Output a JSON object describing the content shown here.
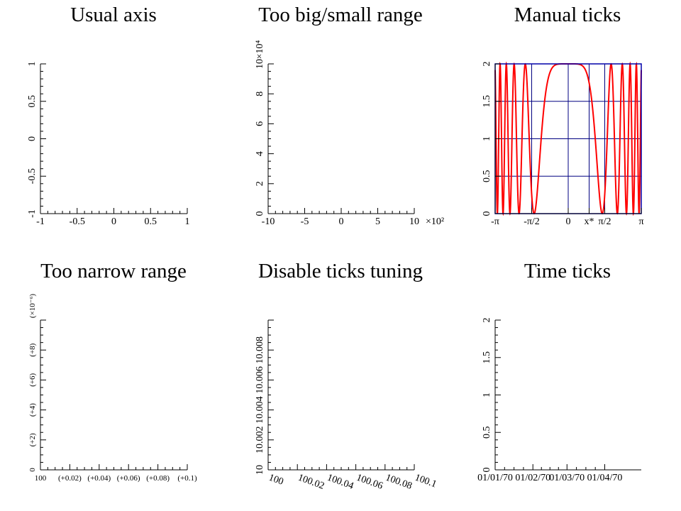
{
  "chart_data": [
    {
      "type": "line",
      "title": "Usual axis",
      "x": {
        "lim": [
          -1,
          1
        ],
        "ticks": [
          -1,
          -0.5,
          0,
          0.5,
          1
        ],
        "tick_labels": [
          "-1",
          "-0.5",
          "0",
          "0.5",
          "1"
        ]
      },
      "y": {
        "lim": [
          -1,
          1
        ],
        "ticks": [
          -1,
          -0.5,
          0,
          0.5,
          1
        ],
        "tick_labels": [
          "-1",
          "-0.5",
          "0",
          "0.5",
          "1"
        ]
      },
      "grid": false,
      "series": []
    },
    {
      "type": "line",
      "title": "Too big/small range",
      "x": {
        "lim": [
          -1000,
          1000
        ],
        "ticks": [
          -1000,
          -500,
          0,
          500,
          1000
        ],
        "tick_labels": [
          "-10",
          "-5",
          "0",
          "5",
          "10"
        ],
        "multiplier": "×10²"
      },
      "y": {
        "lim": [
          0,
          100000
        ],
        "ticks": [
          0,
          20000,
          40000,
          60000,
          80000,
          100000
        ],
        "tick_labels": [
          "0",
          "2",
          "4",
          "6",
          "8",
          "10"
        ],
        "multiplier": "×10⁴"
      },
      "grid": false,
      "series": []
    },
    {
      "type": "line",
      "title": "Manual ticks",
      "x": {
        "lim": [
          -3.1416,
          3.1416
        ],
        "ticks": [
          -3.1416,
          -1.5708,
          0,
          0.9,
          1.5708,
          3.1416
        ],
        "tick_labels": [
          "-π",
          "-π/2",
          "0",
          "x*",
          "π/2",
          "π"
        ]
      },
      "y": {
        "lim": [
          0,
          2
        ],
        "ticks": [
          0,
          0.5,
          1,
          1.5,
          2
        ],
        "tick_labels": [
          "0",
          "0.5",
          "1",
          "1.5",
          "2"
        ]
      },
      "grid": true,
      "series": [
        {
          "function": "1 + cos(x^3)",
          "x_range": [
            -3.1416,
            3.1416
          ],
          "color": "#ff0000"
        }
      ]
    },
    {
      "type": "line",
      "title": "Too narrow range",
      "x": {
        "lim": [
          100,
          100.1
        ],
        "ticks": [
          100,
          100.02,
          100.04,
          100.06,
          100.08,
          100.1
        ],
        "tick_labels": [
          "100",
          "(+0.02)",
          "(+0.04)",
          "(+0.06)",
          "(+0.08)",
          "(+0.1)"
        ]
      },
      "y": {
        "lim": [
          0,
          1e-05
        ],
        "ticks": [
          0,
          2e-06,
          4e-06,
          6e-06,
          8e-06,
          1e-05
        ],
        "tick_labels": [
          "0",
          "(+2)",
          "(+4)",
          "(+6)",
          "(+8)",
          ""
        ],
        "multiplier": "(×10⁻⁶)"
      },
      "grid": false,
      "series": []
    },
    {
      "type": "line",
      "title": "Disable ticks tuning",
      "x": {
        "lim": [
          100,
          100.1
        ],
        "ticks": [
          100,
          100.02,
          100.04,
          100.06,
          100.08,
          100.1
        ],
        "tick_labels": [
          "100",
          "100.02",
          "100.04",
          "100.06",
          "100.08",
          "100.1"
        ]
      },
      "y": {
        "lim": [
          10,
          10.01
        ],
        "ticks": [
          10,
          10.002,
          10.004,
          10.006,
          10.008,
          10.01
        ],
        "tick_labels": [
          "10",
          "10.002",
          "10.004",
          "10.006",
          "10.008",
          ""
        ]
      },
      "grid": false,
      "series": []
    },
    {
      "type": "line",
      "title": "Time ticks",
      "x": {
        "lim": [
          "01/01/70",
          "01/05/70"
        ],
        "ticks": [
          "01/01/70",
          "01/02/70",
          "01/03/70",
          "01/04/70"
        ],
        "tick_labels": [
          "01/01/70",
          "01/02/70",
          "01/03/70",
          "01/04/70"
        ]
      },
      "y": {
        "lim": [
          0,
          2
        ],
        "ticks": [
          0,
          0.5,
          1,
          1.5,
          2
        ],
        "tick_labels": [
          "0",
          "0.5",
          "1",
          "1.5",
          "2"
        ]
      },
      "grid": false,
      "series": []
    }
  ],
  "colors": {
    "axis": "#000000",
    "grid": "#000080",
    "frame": "#0000aa",
    "curve": "#ff0000",
    "background": "#ffffff"
  }
}
